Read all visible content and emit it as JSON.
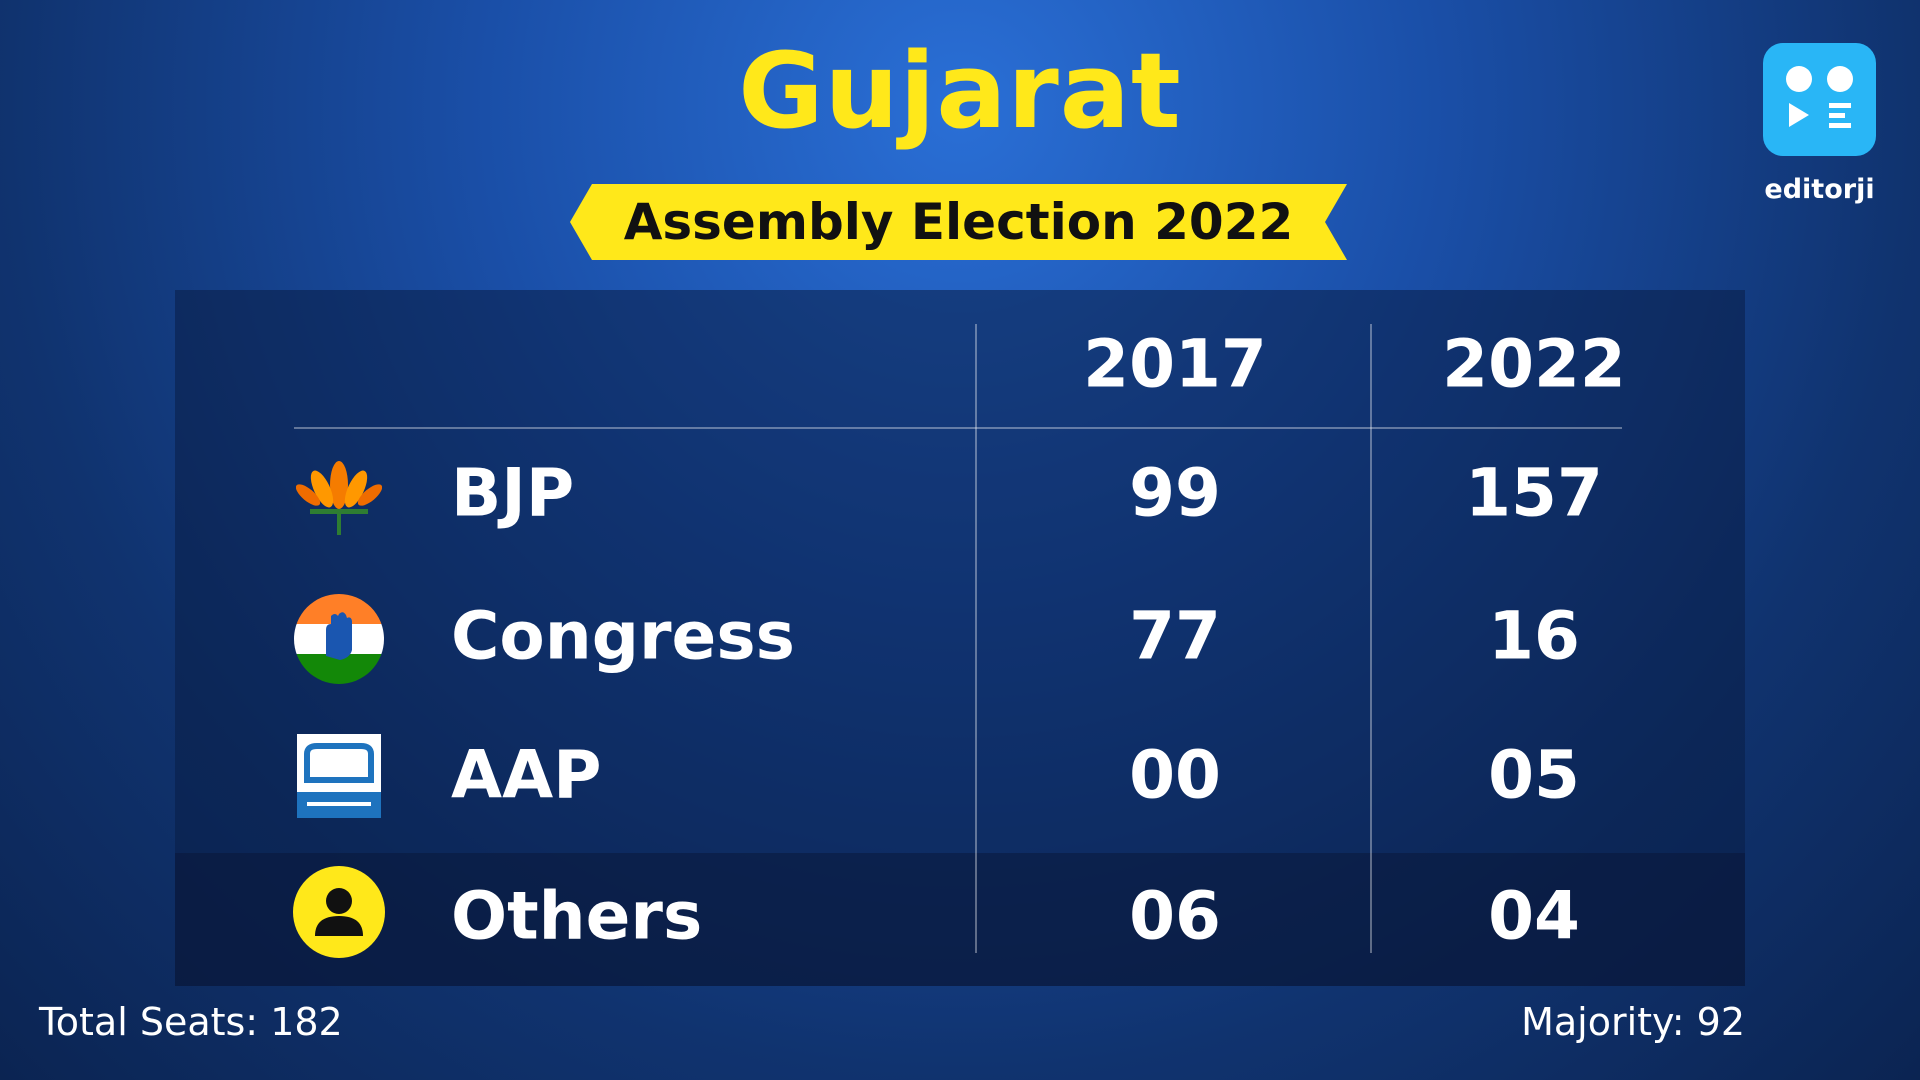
{
  "header": {
    "title": "Gujarat",
    "subtitle": "Assembly Election 2022",
    "brand": "editorji"
  },
  "table": {
    "columns": [
      "2017",
      "2022"
    ],
    "rows": [
      [
        "BJP",
        "99",
        "157"
      ],
      [
        "Congress",
        "77",
        "16"
      ],
      [
        "AAP",
        "00",
        "05"
      ],
      [
        "Others",
        "06",
        "04"
      ]
    ]
  },
  "footer": {
    "total_seats": "Total Seats: 182",
    "majority": "Majority: 92"
  }
}
